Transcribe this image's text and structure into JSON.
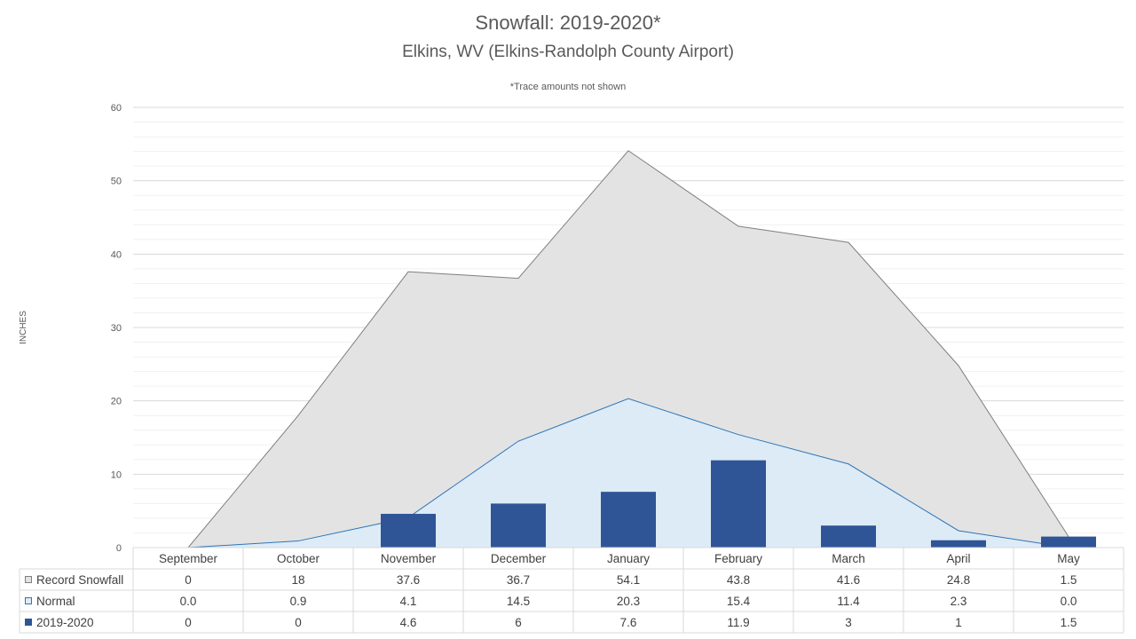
{
  "chart_data": {
    "type": "area",
    "title": "Snowfall: 2019-2020*",
    "subtitle": "Elkins, WV (Elkins-Randolph County Airport)",
    "note": "*Trace amounts not shown",
    "ylabel": "INCHES",
    "ylim": [
      0,
      60
    ],
    "yticks": [
      0,
      10,
      20,
      30,
      40,
      50,
      60
    ],
    "grid": true,
    "legend": "data-table",
    "categories": [
      "September",
      "October",
      "November",
      "December",
      "January",
      "February",
      "March",
      "April",
      "May"
    ],
    "series": [
      {
        "name": "Record Snowfall",
        "kind": "area",
        "color": "#e3e3e3",
        "stroke": "#7f7f7f",
        "values": [
          0,
          18,
          37.6,
          36.7,
          54.1,
          43.8,
          41.6,
          24.8,
          1.5
        ],
        "labels": [
          "0",
          "18",
          "37.6",
          "36.7",
          "54.1",
          "43.8",
          "41.6",
          "24.8",
          "1.5"
        ]
      },
      {
        "name": "Normal",
        "kind": "area",
        "color": "#ddebf7",
        "stroke": "#2e75b6",
        "values": [
          0.0,
          0.9,
          4.1,
          14.5,
          20.3,
          15.4,
          11.4,
          2.3,
          0.0
        ],
        "labels": [
          "0.0",
          "0.9",
          "4.1",
          "14.5",
          "20.3",
          "15.4",
          "11.4",
          "2.3",
          "0.0"
        ]
      },
      {
        "name": "2019-2020",
        "kind": "bar",
        "color": "#2f5597",
        "values": [
          0,
          0,
          4.6,
          6,
          7.6,
          11.9,
          3,
          1,
          1.5
        ],
        "labels": [
          "0",
          "0",
          "4.6",
          "6",
          "7.6",
          "11.9",
          "3",
          "1",
          "1.5"
        ]
      }
    ]
  }
}
